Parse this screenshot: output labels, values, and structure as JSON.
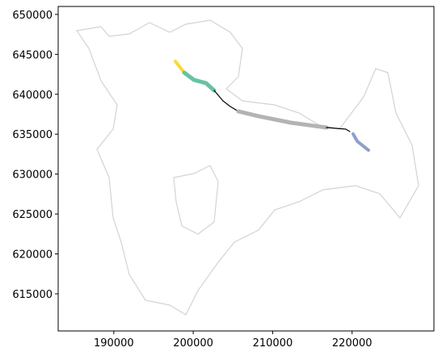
{
  "chart_data": {
    "type": "line",
    "xlim": [
      183000,
      230300
    ],
    "ylim": [
      610350,
      651000
    ],
    "xticks": [
      190000,
      200000,
      210000,
      220000
    ],
    "yticks": [
      615000,
      620000,
      625000,
      630000,
      635000,
      640000,
      645000,
      650000
    ],
    "series": [
      {
        "color": "#fdd835",
        "x": [
          197750,
          198870
        ],
        "y": [
          644125,
          642710
        ]
      },
      {
        "color": "#66c2a5",
        "x": [
          198870,
          200090,
          201610,
          202630
        ],
        "y": [
          642710,
          641800,
          641400,
          640480
        ]
      },
      {
        "color": "#000000",
        "x": [
          202630,
          203750,
          204670,
          205680
        ],
        "y": [
          640480,
          639170,
          638460,
          637860
        ]
      },
      {
        "color": "#b3b3b3",
        "x": [
          205680,
          208220,
          212290,
          216770
        ],
        "y": [
          637860,
          637250,
          636440,
          635830
        ]
      },
      {
        "color": "#000000",
        "x": [
          216770,
          219210,
          219720
        ],
        "y": [
          635830,
          635630,
          635330
        ]
      },
      {
        "color": "#8da0cb",
        "x": [
          220130,
          220640,
          222060
        ],
        "y": [
          635030,
          634120,
          633000
        ]
      }
    ]
  }
}
